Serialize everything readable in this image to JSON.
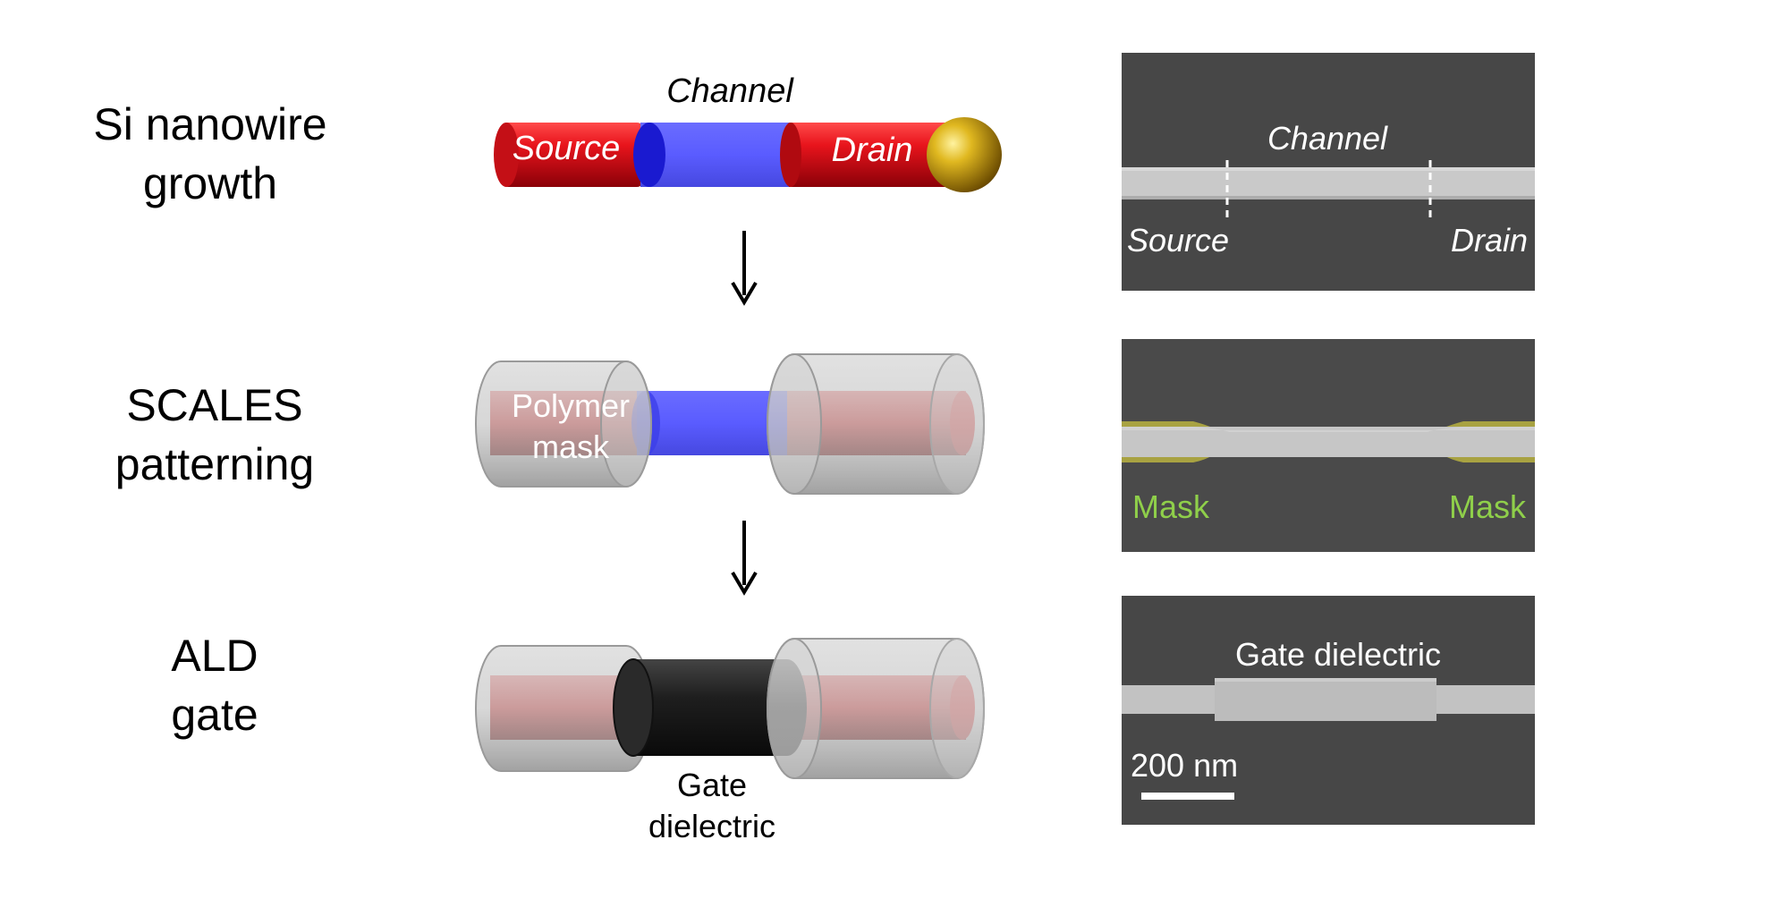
{
  "steps": [
    {
      "title_line1": "Si nanowire",
      "title_line2": "growth"
    },
    {
      "title_line1": "SCALES",
      "title_line2": "patterning"
    },
    {
      "title_line1": "ALD",
      "title_line2": "gate"
    }
  ],
  "schematic": {
    "channel_label": "Channel",
    "source_label": "Source",
    "drain_label": "Drain",
    "mask_line1": "Polymer",
    "mask_line2": "mask",
    "gate_line1": "Gate",
    "gate_line2": "dielectric"
  },
  "micrographs": {
    "panel1": {
      "channel": "Channel",
      "source": "Source",
      "drain": "Drain"
    },
    "panel2": {
      "mask_left": "Mask",
      "mask_right": "Mask"
    },
    "panel3": {
      "gate": "Gate dielectric",
      "scale_bar": "200 nm"
    }
  },
  "colors": {
    "source_drain_red": "#e8141c",
    "channel_blue": "#5a5cff",
    "catalyst_gold": "#d4a80c",
    "mask_grey": "#b8b8b8",
    "gate_black": "#1e1e1e",
    "mask_highlight": "#9ad04a",
    "sem_background": "#4a4a4a"
  }
}
